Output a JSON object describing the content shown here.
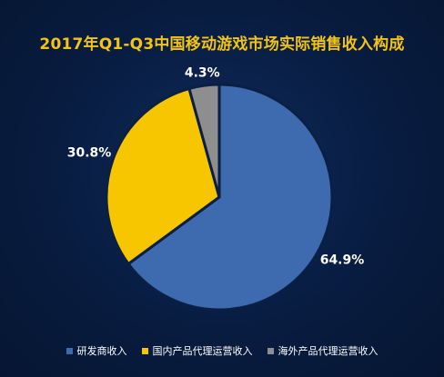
{
  "chart_data": {
    "type": "pie",
    "title": "2017年Q1-Q3中国移动游戏市场实际销售收入构成",
    "categories": [
      "研发商收入",
      "国内产品代理运营收入",
      "海外产品代理运营收入"
    ],
    "values": [
      64.9,
      30.8,
      4.3
    ],
    "value_labels": [
      "64.9%",
      "30.8%",
      "4.3%"
    ],
    "unit": "%",
    "colors": [
      "#3e6bb0",
      "#f7c600",
      "#8e8e8e"
    ],
    "legend_placement": "bottom"
  }
}
